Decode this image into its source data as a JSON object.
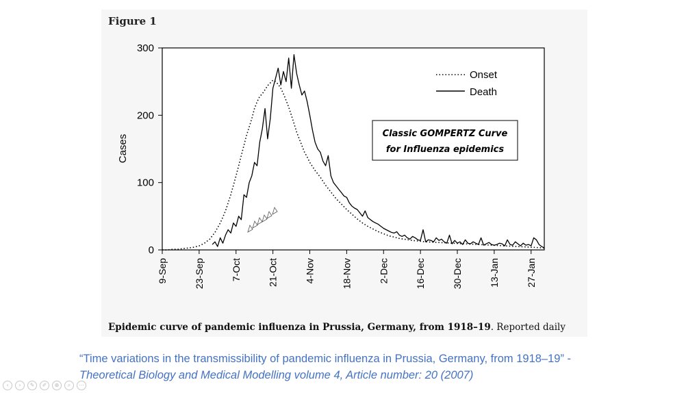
{
  "figure_label": "Figure 1",
  "caption": {
    "strong": "Epidemic curve of pandemic influenza in Prussia, Germany, from 1918–19",
    "rest": ". Reported daily"
  },
  "citation": {
    "line1": "“Time variations in the transmissibility of pandemic influenza in Prussia, Germany, from 1918–19” -",
    "line2": "Theoretical Biology and Medical Modelling volume 4, Article number: 20 (2007)"
  },
  "slide_controls": [
    {
      "name": "previous-slide-icon",
      "glyph": "‹"
    },
    {
      "name": "next-slide-icon",
      "glyph": "›"
    },
    {
      "name": "pen-icon",
      "glyph": "✎"
    },
    {
      "name": "edit-icon",
      "glyph": "✐"
    },
    {
      "name": "zoom-icon",
      "glyph": "⊕"
    },
    {
      "name": "search-icon",
      "glyph": "⌕"
    },
    {
      "name": "more-options-icon",
      "glyph": "⋯"
    }
  ],
  "chart_data": {
    "type": "line",
    "title": "",
    "xlabel": "",
    "ylabel": "Cases",
    "x_tick_labels": [
      "9-Sep",
      "23-Sep",
      "7-Oct",
      "21-Oct",
      "4-Nov",
      "18-Nov",
      "2-Dec",
      "16-Dec",
      "30-Dec",
      "13-Jan",
      "27-Jan"
    ],
    "x_tick_day_offsets": [
      0,
      14,
      28,
      42,
      56,
      70,
      84,
      98,
      112,
      126,
      140
    ],
    "y_ticks": [
      0,
      100,
      200,
      300
    ],
    "xlim": [
      0,
      145
    ],
    "ylim": [
      0,
      300
    ],
    "legend_position": "top-right",
    "annotation": {
      "line1": "Classic GOMPERTZ Curve",
      "line2": "for Influenza epidemics"
    },
    "series": [
      {
        "name": "Onset",
        "style": "dotted",
        "x": [
          0,
          2,
          4,
          6,
          8,
          10,
          12,
          14,
          16,
          18,
          20,
          22,
          24,
          26,
          28,
          30,
          32,
          34,
          35,
          36,
          37,
          38,
          39,
          40,
          41,
          42,
          43,
          44,
          45,
          46,
          47,
          48,
          49,
          50,
          51,
          52,
          53,
          54,
          55,
          56,
          58,
          60,
          62,
          64,
          66,
          68,
          70,
          72,
          74,
          76,
          78,
          80,
          82,
          84,
          86,
          88,
          90,
          95,
          100,
          105,
          110,
          115,
          120,
          125,
          130,
          135,
          140,
          145
        ],
        "values": [
          0,
          0,
          1,
          1,
          2,
          3,
          4,
          6,
          10,
          16,
          26,
          40,
          58,
          82,
          110,
          140,
          170,
          195,
          210,
          220,
          228,
          232,
          238,
          244,
          248,
          252,
          250,
          246,
          240,
          232,
          222,
          212,
          200,
          188,
          175,
          165,
          155,
          145,
          138,
          130,
          118,
          108,
          96,
          86,
          76,
          68,
          60,
          53,
          46,
          40,
          35,
          31,
          27,
          24,
          21,
          19,
          17,
          14,
          12,
          11,
          10,
          9,
          8,
          7,
          6,
          5,
          4,
          3
        ]
      },
      {
        "name": "Death",
        "style": "solid",
        "x": [
          19,
          20,
          21,
          22,
          23,
          24,
          25,
          26,
          27,
          28,
          29,
          30,
          31,
          32,
          33,
          34,
          35,
          36,
          37,
          38,
          39,
          40,
          41,
          42,
          43,
          44,
          45,
          46,
          47,
          48,
          49,
          50,
          51,
          52,
          53,
          54,
          55,
          56,
          57,
          58,
          59,
          60,
          61,
          62,
          63,
          64,
          65,
          66,
          67,
          68,
          69,
          70,
          71,
          72,
          73,
          74,
          75,
          76,
          77,
          78,
          79,
          80,
          81,
          82,
          83,
          84,
          85,
          86,
          87,
          88,
          89,
          90,
          91,
          92,
          93,
          94,
          95,
          96,
          97,
          98,
          99,
          100,
          101,
          102,
          103,
          104,
          105,
          106,
          107,
          108,
          109,
          110,
          111,
          112,
          113,
          114,
          115,
          116,
          117,
          118,
          119,
          120,
          121,
          122,
          123,
          124,
          125,
          126,
          127,
          128,
          129,
          130,
          131,
          132,
          133,
          134,
          135,
          136,
          137,
          138,
          139,
          140,
          141,
          142,
          143,
          144,
          145
        ],
        "values": [
          8,
          12,
          5,
          18,
          10,
          22,
          30,
          25,
          40,
          35,
          50,
          45,
          82,
          78,
          100,
          110,
          130,
          125,
          160,
          180,
          210,
          165,
          195,
          240,
          255,
          270,
          245,
          265,
          250,
          285,
          240,
          290,
          262,
          245,
          230,
          236,
          220,
          200,
          178,
          160,
          150,
          145,
          132,
          125,
          140,
          110,
          100,
          95,
          90,
          85,
          80,
          78,
          70,
          65,
          62,
          60,
          55,
          50,
          58,
          48,
          45,
          42,
          40,
          38,
          35,
          32,
          30,
          28,
          26,
          25,
          27,
          22,
          20,
          22,
          18,
          16,
          20,
          18,
          15,
          14,
          30,
          12,
          15,
          14,
          12,
          18,
          14,
          16,
          12,
          10,
          22,
          9,
          14,
          10,
          12,
          8,
          15,
          10,
          9,
          12,
          10,
          8,
          18,
          7,
          9,
          11,
          8,
          7,
          8,
          10,
          9,
          6,
          15,
          8,
          7,
          12,
          9,
          6,
          10,
          7,
          8,
          6,
          18,
          15,
          8,
          5,
          3
        ]
      }
    ]
  }
}
